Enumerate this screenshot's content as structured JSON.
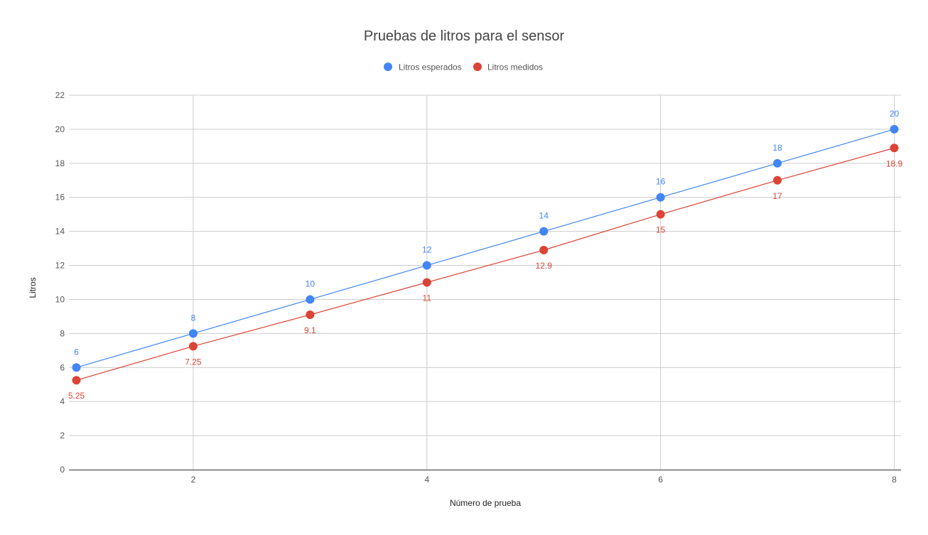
{
  "chart_data": {
    "type": "line",
    "title": "Pruebas de litros para el sensor",
    "xlabel": "Número de prueba",
    "ylabel": "Litros",
    "x": [
      1,
      2,
      3,
      4,
      5,
      6,
      7,
      8
    ],
    "xlim": [
      1,
      8
    ],
    "xticks": [
      "2",
      "4",
      "6",
      "8"
    ],
    "ylim": [
      0,
      22
    ],
    "yticks": [
      "0",
      "2",
      "4",
      "6",
      "8",
      "10",
      "12",
      "14",
      "16",
      "18",
      "20",
      "22"
    ],
    "grid": true,
    "legend_position": "top",
    "series": [
      {
        "name": "Litros esperados",
        "color": "#4285f4",
        "values": [
          6,
          8,
          10,
          12,
          14,
          16,
          18,
          20
        ],
        "labels": [
          "6",
          "8",
          "10",
          "12",
          "14",
          "16",
          "18",
          "20"
        ],
        "label_position": "above"
      },
      {
        "name": "Litros medidos",
        "color": "#db4437",
        "values": [
          5.25,
          7.25,
          9.1,
          11,
          12.9,
          15,
          17,
          18.9
        ],
        "labels": [
          "5.25",
          "7.25",
          "9.1",
          "11",
          "12.9",
          "15",
          "17",
          "18.9"
        ],
        "label_position": "below"
      }
    ]
  }
}
